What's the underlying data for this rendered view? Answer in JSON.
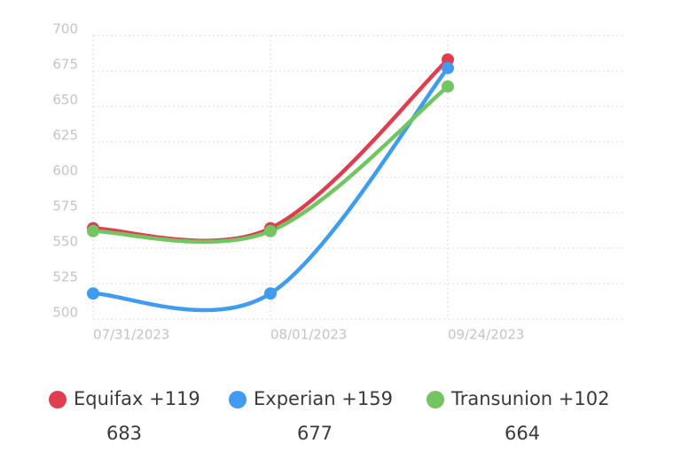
{
  "chart_data": {
    "type": "line",
    "categories": [
      "07/31/2023",
      "08/01/2023",
      "09/24/2023"
    ],
    "series": [
      {
        "name": "Equifax +119",
        "color": "#e03e50",
        "values": [
          564,
          564,
          683
        ]
      },
      {
        "name": "Experian +159",
        "color": "#3f9cf1",
        "values": [
          518,
          518,
          677
        ]
      },
      {
        "name": "Transunion +102",
        "color": "#72c561",
        "values": [
          562,
          562,
          664
        ]
      }
    ],
    "ylim": [
      500,
      700
    ],
    "yticks": [
      500,
      525,
      550,
      575,
      600,
      625,
      650,
      675,
      700
    ],
    "grid": true
  }
}
